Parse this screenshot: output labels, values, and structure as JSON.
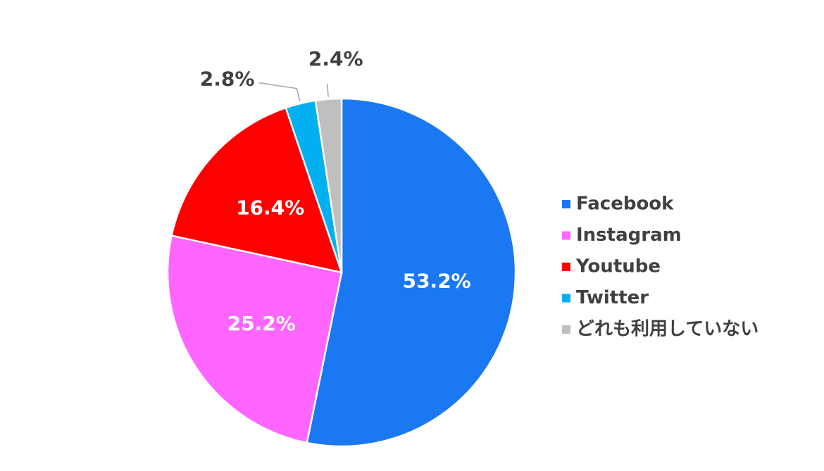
{
  "chart_data": {
    "type": "pie",
    "categories": [
      "Facebook",
      "Instagram",
      "Youtube",
      "Twitter",
      "どれも利用していない"
    ],
    "values": [
      53.2,
      25.2,
      16.4,
      2.8,
      2.4
    ],
    "value_labels": [
      "53.2%",
      "25.2%",
      "16.4%",
      "2.8%",
      "2.4%"
    ],
    "colors": [
      "#1a78f2",
      "#ff66ff",
      "#ff0000",
      "#00b0f0",
      "#bfbfbf"
    ],
    "legend": "right"
  }
}
